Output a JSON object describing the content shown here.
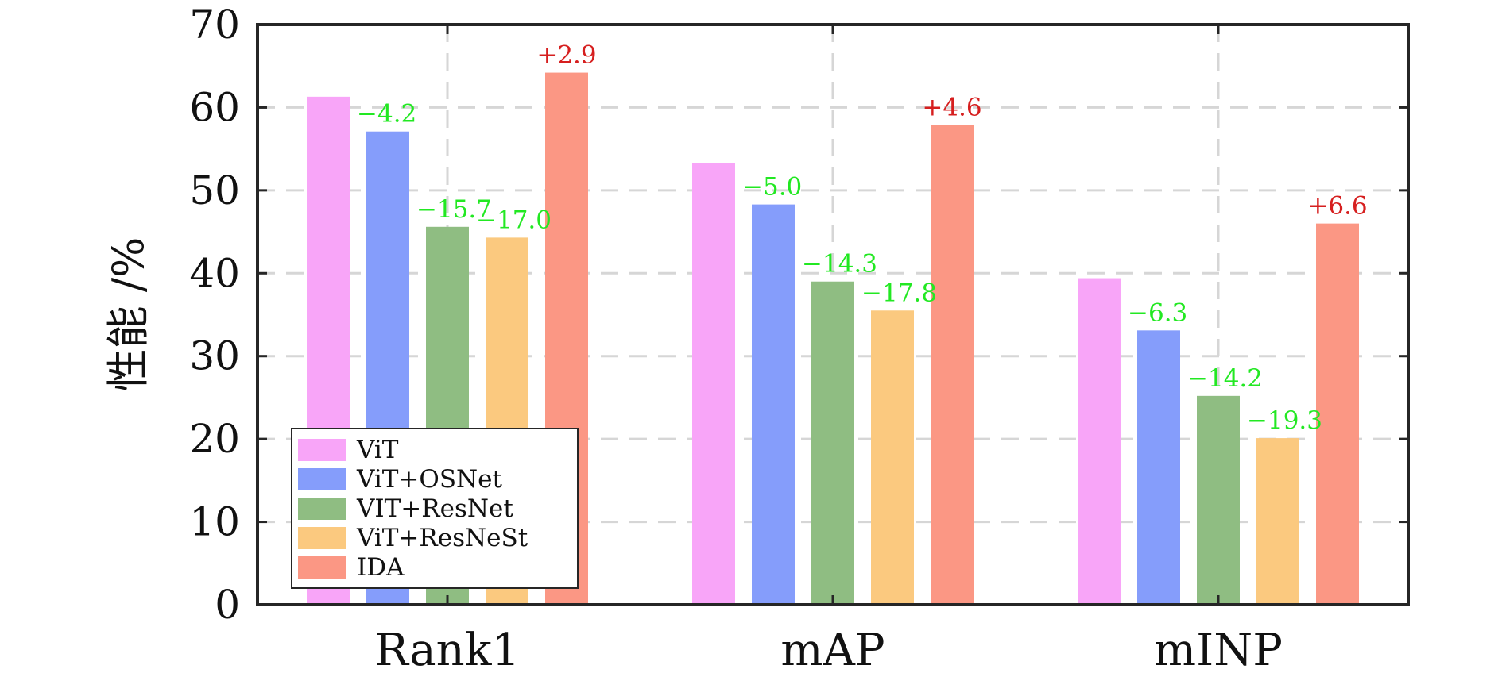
{
  "chart_data": {
    "type": "bar",
    "title": "",
    "xlabel": "",
    "ylabel": "性能 /%",
    "ylim": [
      0,
      70
    ],
    "yticks": [
      0,
      10,
      20,
      30,
      40,
      50,
      60,
      70
    ],
    "grid": true,
    "legend_position": "bottom-left",
    "categories": [
      "Rank1",
      "mAP",
      "mINP"
    ],
    "series": [
      {
        "name": "ViT",
        "color": "#f8a5f8",
        "values": [
          61.3,
          53.3,
          39.4
        ],
        "annotations": [
          "",
          "",
          ""
        ]
      },
      {
        "name": "ViT+OSNet",
        "color": "#859dfb",
        "values": [
          57.1,
          48.3,
          33.1
        ],
        "annotations": [
          "−4.2",
          "−5.0",
          "−6.3"
        ]
      },
      {
        "name": "VIT+ResNet",
        "color": "#8fbd82",
        "values": [
          45.6,
          39.0,
          25.2
        ],
        "annotations": [
          "−15.7",
          "−14.3",
          "−14.2"
        ]
      },
      {
        "name": "ViT+ResNeSt",
        "color": "#fbc97f",
        "values": [
          44.3,
          35.5,
          20.1
        ],
        "annotations": [
          "−17.0",
          "−17.8",
          "−19.3"
        ]
      },
      {
        "name": "IDA",
        "color": "#fb9784",
        "values": [
          64.2,
          57.9,
          46.0
        ],
        "annotations": [
          "+2.9",
          "+4.6",
          "+6.6"
        ]
      }
    ],
    "annotation_colors": {
      "negative": "#22e822",
      "positive": "#d61f1f"
    }
  }
}
